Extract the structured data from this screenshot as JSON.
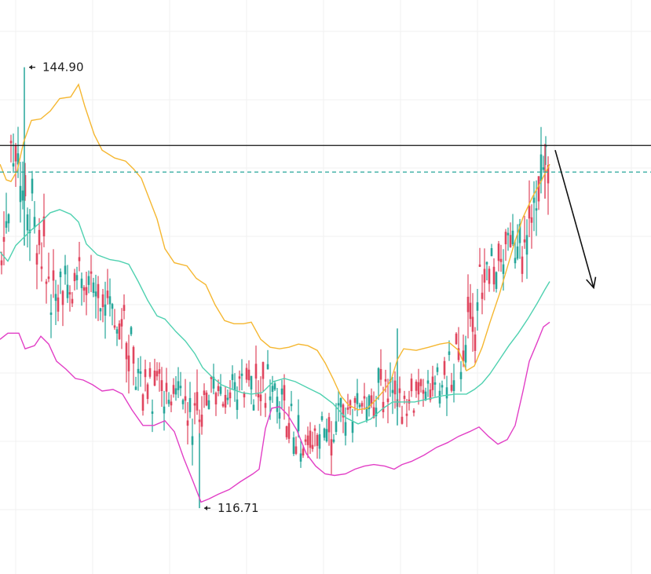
{
  "chart_data": {
    "type": "candlestick",
    "title": "",
    "xlabel": "",
    "ylabel": "",
    "ylim": [
      112.5,
      149.2
    ],
    "grid": true,
    "colors": {
      "bull": "#26a69a",
      "bear": "#e0455e",
      "upper_band": "#f5b731",
      "middle_band": "#4fd1b0",
      "lower_band": "#e23fc6",
      "resistance": "#111111",
      "dashed_level": "#26a69a",
      "arrow": "#111111"
    },
    "annotations": {
      "high": {
        "label": "144.90",
        "value": 144.9
      },
      "low": {
        "label": "116.71",
        "value": 116.71
      }
    },
    "levels": {
      "resistance": 139.9,
      "dashed": 138.2
    },
    "bands": {
      "upper": [
        [
          0,
          138.7
        ],
        [
          8,
          137.7
        ],
        [
          14,
          137.6
        ],
        [
          22,
          138.3
        ],
        [
          30,
          140.1
        ],
        [
          40,
          141.5
        ],
        [
          52,
          141.6
        ],
        [
          64,
          142.1
        ],
        [
          76,
          142.9
        ],
        [
          90,
          143.0
        ],
        [
          100,
          143.8
        ],
        [
          108,
          142.4
        ],
        [
          120,
          140.6
        ],
        [
          130,
          139.6
        ],
        [
          146,
          139.1
        ],
        [
          160,
          138.9
        ],
        [
          170,
          138.4
        ],
        [
          180,
          137.8
        ],
        [
          190,
          136.5
        ],
        [
          200,
          135.2
        ],
        [
          210,
          133.3
        ],
        [
          222,
          132.4
        ],
        [
          238,
          132.2
        ],
        [
          250,
          131.4
        ],
        [
          262,
          131.0
        ],
        [
          274,
          129.7
        ],
        [
          286,
          128.7
        ],
        [
          298,
          128.5
        ],
        [
          310,
          128.5
        ],
        [
          320,
          128.6
        ],
        [
          332,
          127.5
        ],
        [
          344,
          127.0
        ],
        [
          356,
          126.9
        ],
        [
          368,
          127.0
        ],
        [
          380,
          127.2
        ],
        [
          392,
          127.1
        ],
        [
          404,
          126.8
        ],
        [
          414,
          126.0
        ],
        [
          424,
          125.0
        ],
        [
          434,
          123.9
        ],
        [
          444,
          123.3
        ],
        [
          456,
          123.0
        ],
        [
          468,
          123.1
        ],
        [
          478,
          123.6
        ],
        [
          490,
          124.3
        ],
        [
          498,
          124.9
        ],
        [
          506,
          126.2
        ],
        [
          514,
          126.9
        ],
        [
          530,
          126.8
        ],
        [
          546,
          127.0
        ],
        [
          560,
          127.2
        ],
        [
          572,
          127.3
        ],
        [
          584,
          126.8
        ],
        [
          594,
          125.5
        ],
        [
          604,
          125.8
        ],
        [
          614,
          127.0
        ],
        [
          624,
          128.6
        ],
        [
          636,
          130.4
        ],
        [
          646,
          132.1
        ],
        [
          656,
          133.8
        ],
        [
          666,
          135.3
        ],
        [
          678,
          136.6
        ],
        [
          690,
          137.7
        ],
        [
          700,
          138.7
        ]
      ],
      "middle": [
        [
          0,
          133.1
        ],
        [
          10,
          132.5
        ],
        [
          20,
          133.5
        ],
        [
          30,
          134.0
        ],
        [
          40,
          134.5
        ],
        [
          52,
          135.0
        ],
        [
          64,
          135.6
        ],
        [
          76,
          135.8
        ],
        [
          90,
          135.5
        ],
        [
          100,
          135.0
        ],
        [
          110,
          133.6
        ],
        [
          124,
          132.9
        ],
        [
          140,
          132.6
        ],
        [
          152,
          132.5
        ],
        [
          164,
          132.3
        ],
        [
          176,
          131.2
        ],
        [
          188,
          130.0
        ],
        [
          200,
          129.0
        ],
        [
          210,
          128.8
        ],
        [
          224,
          128.0
        ],
        [
          236,
          127.4
        ],
        [
          248,
          126.6
        ],
        [
          258,
          125.7
        ],
        [
          270,
          125.1
        ],
        [
          282,
          124.6
        ],
        [
          296,
          124.3
        ],
        [
          308,
          124.1
        ],
        [
          320,
          124.0
        ],
        [
          334,
          124.1
        ],
        [
          348,
          124.8
        ],
        [
          362,
          125.0
        ],
        [
          376,
          124.8
        ],
        [
          392,
          124.4
        ],
        [
          408,
          124.0
        ],
        [
          424,
          123.4
        ],
        [
          440,
          122.5
        ],
        [
          456,
          122.1
        ],
        [
          472,
          122.4
        ],
        [
          488,
          123.1
        ],
        [
          500,
          123.5
        ],
        [
          512,
          123.5
        ],
        [
          528,
          123.5
        ],
        [
          546,
          123.7
        ],
        [
          564,
          123.9
        ],
        [
          580,
          124.0
        ],
        [
          594,
          124.0
        ],
        [
          604,
          124.3
        ],
        [
          614,
          124.7
        ],
        [
          624,
          125.3
        ],
        [
          636,
          126.2
        ],
        [
          648,
          127.1
        ],
        [
          660,
          127.9
        ],
        [
          672,
          128.8
        ],
        [
          684,
          129.8
        ],
        [
          694,
          130.7
        ],
        [
          700,
          131.2
        ]
      ],
      "lower": [
        [
          0,
          127.5
        ],
        [
          10,
          127.9
        ],
        [
          24,
          127.9
        ],
        [
          32,
          126.9
        ],
        [
          44,
          127.1
        ],
        [
          52,
          127.7
        ],
        [
          62,
          127.2
        ],
        [
          72,
          126.1
        ],
        [
          84,
          125.6
        ],
        [
          96,
          125.0
        ],
        [
          106,
          124.9
        ],
        [
          118,
          124.6
        ],
        [
          130,
          124.2
        ],
        [
          144,
          124.3
        ],
        [
          156,
          124.0
        ],
        [
          168,
          123.0
        ],
        [
          182,
          122.0
        ],
        [
          196,
          122.0
        ],
        [
          210,
          122.3
        ],
        [
          222,
          121.6
        ],
        [
          234,
          119.9
        ],
        [
          246,
          118.4
        ],
        [
          256,
          117.1
        ],
        [
          266,
          117.3
        ],
        [
          278,
          117.6
        ],
        [
          292,
          117.9
        ],
        [
          306,
          118.4
        ],
        [
          322,
          118.9
        ],
        [
          330,
          119.2
        ],
        [
          338,
          121.8
        ],
        [
          346,
          123.1
        ],
        [
          356,
          123.2
        ],
        [
          366,
          122.7
        ],
        [
          378,
          121.7
        ],
        [
          390,
          120.2
        ],
        [
          402,
          119.4
        ],
        [
          414,
          118.9
        ],
        [
          426,
          118.8
        ],
        [
          440,
          118.9
        ],
        [
          452,
          119.2
        ],
        [
          464,
          119.4
        ],
        [
          476,
          119.5
        ],
        [
          490,
          119.4
        ],
        [
          502,
          119.2
        ],
        [
          512,
          119.5
        ],
        [
          524,
          119.7
        ],
        [
          540,
          120.1
        ],
        [
          556,
          120.6
        ],
        [
          570,
          120.9
        ],
        [
          584,
          121.3
        ],
        [
          598,
          121.6
        ],
        [
          610,
          121.9
        ],
        [
          622,
          121.3
        ],
        [
          634,
          120.8
        ],
        [
          646,
          121.1
        ],
        [
          656,
          122.0
        ],
        [
          666,
          124.2
        ],
        [
          674,
          126.1
        ],
        [
          684,
          127.3
        ],
        [
          692,
          128.3
        ],
        [
          700,
          128.6
        ]
      ]
    },
    "candles_segments": [
      [
        0,
        134,
        6,
        15,
        2.0,
        0.6
      ],
      [
        22,
        140,
        3,
        14,
        2.2,
        0.7
      ],
      [
        64,
        131,
        10,
        25,
        1.8,
        0.55
      ],
      [
        104,
        131,
        6,
        18,
        1.5,
        0.5
      ],
      [
        150,
        129.5,
        7,
        16,
        1.8,
        0.6
      ],
      [
        180,
        124.5,
        9,
        20,
        1.5,
        0.5
      ],
      [
        230,
        123.5,
        6,
        13,
        1.2,
        0.4
      ],
      [
        248,
        121.5,
        5,
        16,
        2.0,
        0.6
      ],
      [
        262,
        124,
        6,
        14,
        1.0,
        0.4
      ],
      [
        300,
        124.3,
        4,
        10,
        0.9,
        0.35
      ],
      [
        330,
        124.5,
        2,
        12,
        1.4,
        0.5
      ],
      [
        354,
        124,
        4,
        11,
        1.5,
        0.55
      ],
      [
        382,
        121.3,
        5,
        14,
        1.3,
        0.5
      ],
      [
        420,
        121.7,
        3,
        12,
        1.5,
        0.5
      ],
      [
        446,
        122.7,
        7,
        14,
        1.0,
        0.4
      ],
      [
        470,
        124,
        6,
        14,
        1.2,
        0.4
      ],
      [
        498,
        124.5,
        2,
        20,
        1.7,
        0.5
      ],
      [
        514,
        123,
        8,
        14,
        1.2,
        0.4
      ],
      [
        534,
        124,
        6,
        16,
        1.0,
        0.4
      ],
      [
        560,
        124.7,
        2,
        18,
        1.0,
        0.4
      ],
      [
        586,
        126,
        8,
        14,
        1.8,
        0.5
      ],
      [
        610,
        130,
        9,
        16,
        2.0,
        0.6
      ],
      [
        636,
        132.5,
        7,
        18,
        1.3,
        0.5
      ],
      [
        672,
        134.5,
        4,
        10,
        1.8,
        0.6
      ],
      [
        690,
        138.5,
        2,
        6,
        2.5,
        0.8
      ]
    ],
    "notable_wicks": [
      {
        "x": 31,
        "high": 144.9,
        "low": 133.5
      },
      {
        "x": 254,
        "high": 121.5,
        "low": 116.71
      },
      {
        "x": 506,
        "high": 128.2,
        "low": 122.0
      },
      {
        "x": 694,
        "high": 140.0,
        "low": 136.5
      }
    ],
    "projection": {
      "from": [
        707,
        139.6
      ],
      "to": [
        756,
        130.8
      ]
    }
  }
}
